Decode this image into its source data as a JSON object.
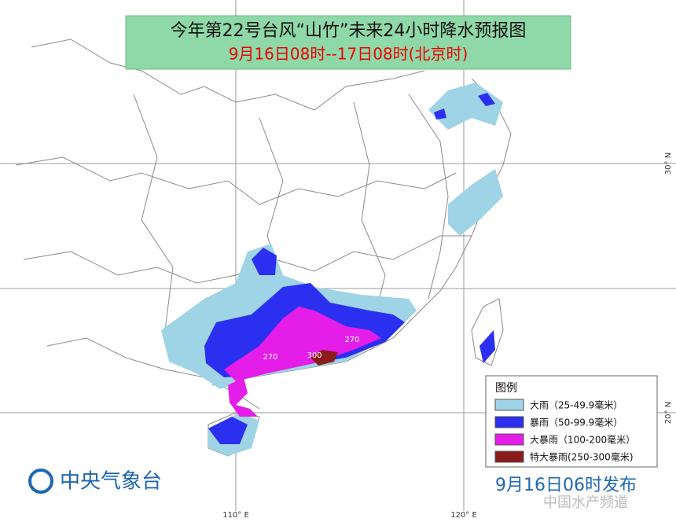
{
  "header": {
    "title": "今年第22号台风“山竹”未来24小时降水预报图",
    "subtitle": "9月16日08时--17日08时(北京时)"
  },
  "legend": {
    "title": "图例",
    "items": [
      {
        "label": "大雨（25-49.9毫米）",
        "color": "#9fd3e6"
      },
      {
        "label": "暴雨（50-99.9毫米）",
        "color": "#2b2ff0"
      },
      {
        "label": "大暴雨（100-200毫米）",
        "color": "#e41ee8"
      },
      {
        "label": "特大暴雨(250-300毫米)",
        "color": "#8b1c1c"
      }
    ]
  },
  "map": {
    "grid_labels": [
      "110° E",
      "120° E",
      "30° N",
      "20° N"
    ],
    "contour_labels": [
      "270",
      "300",
      "270"
    ]
  },
  "footer": {
    "agency": "中央气象台",
    "issued": "9月16日06时发布",
    "watermark": "中国水产频道"
  }
}
